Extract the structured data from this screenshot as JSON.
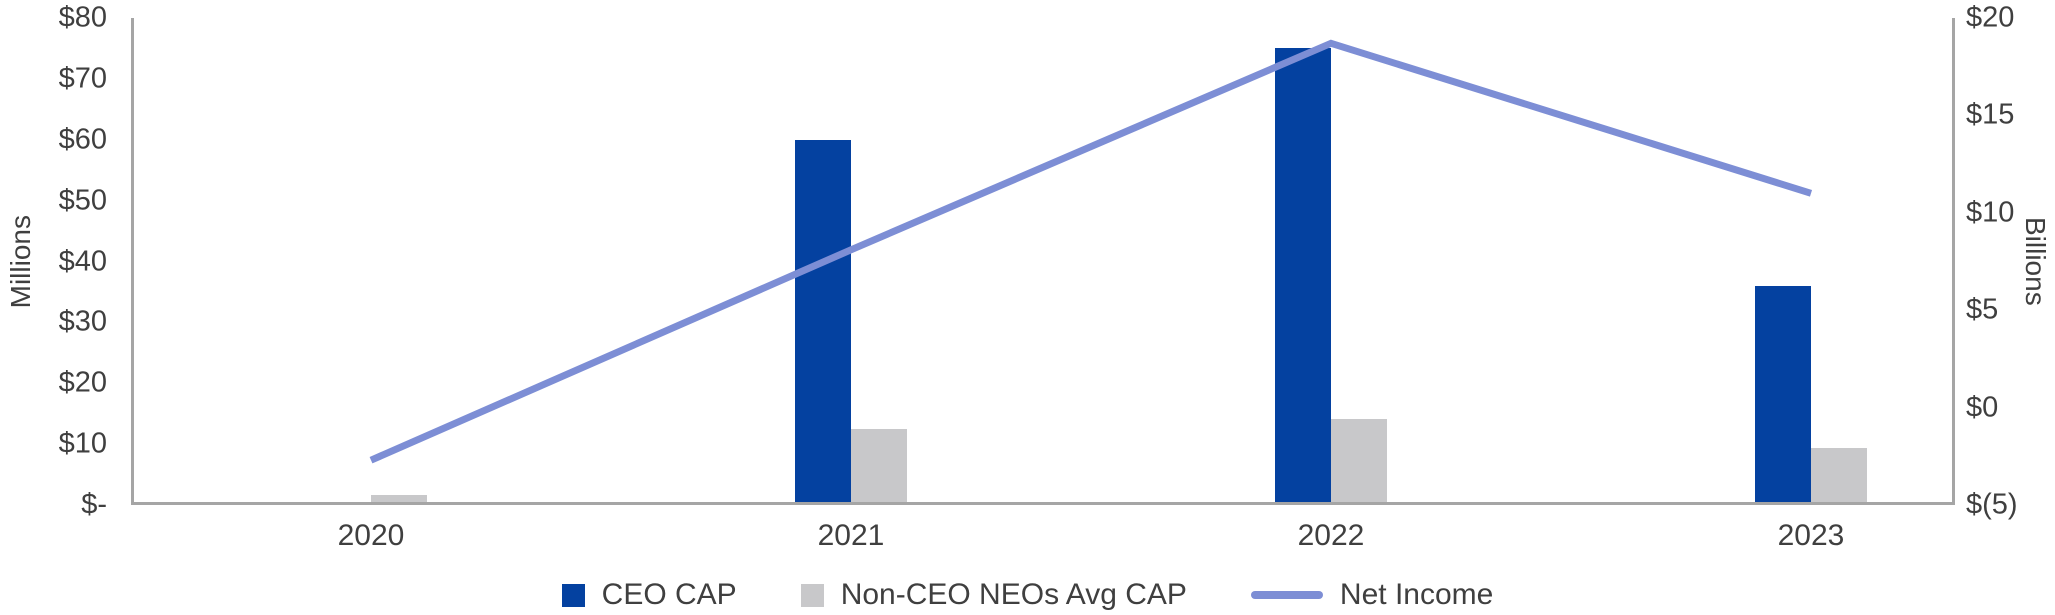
{
  "chart_data": {
    "type": "bar",
    "subtype": "combo-bar-line-dual-axis",
    "categories": [
      "2020",
      "2021",
      "2022",
      "2023"
    ],
    "series": [
      {
        "name": "CEO CAP",
        "type": "bar",
        "axis": "left",
        "color": "#0441a0",
        "values": [
          0.5,
          60,
          75,
          36
        ]
      },
      {
        "name": "Non-CEO NEOs Avg CAP",
        "type": "bar",
        "axis": "left",
        "color": "#c8c8ca",
        "values": [
          1.7,
          12.5,
          14.2,
          9.3
        ]
      },
      {
        "name": "Net Income",
        "type": "line",
        "axis": "right",
        "color": "#7d8ed5",
        "values": [
          -2.7,
          8.1,
          18.7,
          11.0
        ]
      }
    ],
    "left_axis": {
      "title": "Millions",
      "min": 0,
      "max": 80,
      "tick_step": 10,
      "ticks": [
        {
          "label": "$-",
          "value": 0
        },
        {
          "label": "$10",
          "value": 10
        },
        {
          "label": "$20",
          "value": 20
        },
        {
          "label": "$30",
          "value": 30
        },
        {
          "label": "$40",
          "value": 40
        },
        {
          "label": "$50",
          "value": 50
        },
        {
          "label": "$60",
          "value": 60
        },
        {
          "label": "$70",
          "value": 70
        },
        {
          "label": "$80",
          "value": 80
        }
      ]
    },
    "right_axis": {
      "title": "Billions",
      "min": -5,
      "max": 20,
      "tick_step": 5,
      "ticks": [
        {
          "label": "$(5)",
          "value": -5
        },
        {
          "label": "$0",
          "value": 0
        },
        {
          "label": "$5",
          "value": 5
        },
        {
          "label": "$10",
          "value": 10
        },
        {
          "label": "$15",
          "value": 15
        },
        {
          "label": "$20",
          "value": 20
        }
      ]
    },
    "legend": {
      "position": "bottom",
      "entries": [
        "CEO CAP",
        "Non-CEO NEOs Avg CAP",
        "Net Income"
      ]
    },
    "grid": false,
    "colors": {
      "axis_line": "#a5a5a5",
      "text": "#3f3f3f",
      "background": "#ffffff"
    }
  }
}
